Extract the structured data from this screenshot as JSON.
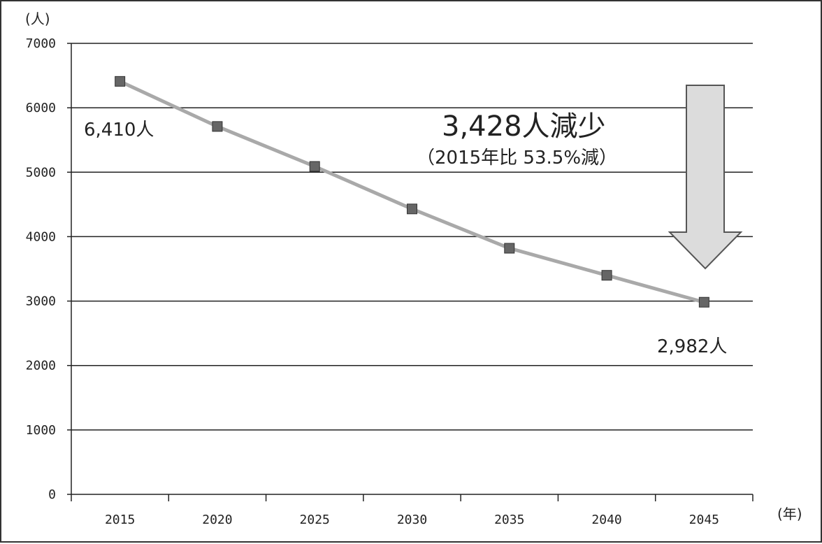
{
  "chart_data": {
    "type": "line",
    "title": "",
    "xlabel": "(年)",
    "ylabel": "(人)",
    "x": [
      "2015",
      "2020",
      "2025",
      "2030",
      "2035",
      "2040",
      "2045"
    ],
    "series": [
      {
        "values": [
          6410,
          5710,
          5090,
          4430,
          3820,
          3400,
          2982
        ]
      }
    ],
    "ylim": [
      0,
      7000
    ],
    "yticks": [
      "0",
      "1000",
      "2000",
      "3000",
      "4000",
      "5000",
      "6000",
      "7000"
    ],
    "grid": true,
    "colors": {
      "line": "#a9a9a9",
      "marker": "#666666",
      "arrow_fill": "#dcdcdc",
      "arrow_stroke": "#555555"
    },
    "data_labels": {
      "first": "6,410人",
      "last": "2,982人"
    },
    "annotation": {
      "main": "3,428人減少",
      "sub": "（2015年比  53.5%減）"
    }
  }
}
